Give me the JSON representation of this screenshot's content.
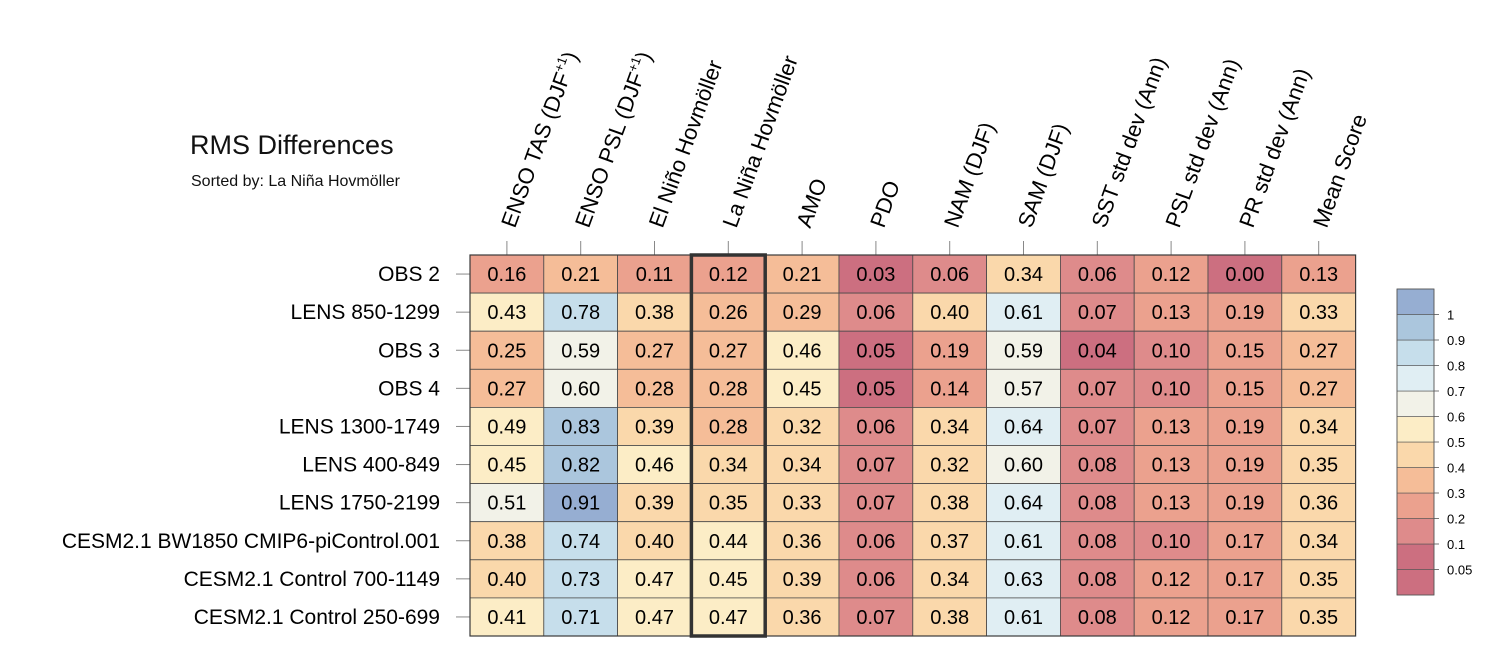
{
  "chart_data": {
    "type": "heatmap",
    "title": "RMS Differences",
    "subtitle": "Sorted by: La Niña Hovmöller",
    "columns": [
      {
        "base": "ENSO TAS (DJF",
        "sup": "+1",
        "tail": ")"
      },
      {
        "base": "ENSO PSL (DJF",
        "sup": "+1",
        "tail": ")"
      },
      {
        "base": "El Niño Hovmöller",
        "sup": "",
        "tail": ""
      },
      {
        "base": "La Niña Hovmöller",
        "sup": "",
        "tail": ""
      },
      {
        "base": "AMO",
        "sup": "",
        "tail": ""
      },
      {
        "base": "PDO",
        "sup": "",
        "tail": ""
      },
      {
        "base": "NAM (DJF)",
        "sup": "",
        "tail": ""
      },
      {
        "base": "SAM (DJF)",
        "sup": "",
        "tail": ""
      },
      {
        "base": "SST std dev (Ann)",
        "sup": "",
        "tail": ""
      },
      {
        "base": "PSL std dev (Ann)",
        "sup": "",
        "tail": ""
      },
      {
        "base": "PR std dev (Ann)",
        "sup": "",
        "tail": ""
      },
      {
        "base": "Mean Score",
        "sup": "",
        "tail": ""
      }
    ],
    "rows": [
      "OBS 2",
      "LENS 850-1299",
      "OBS 3",
      "OBS 4",
      "LENS 1300-1749",
      "LENS 400-849",
      "LENS 1750-2199",
      "CESM2.1 BW1850 CMIP6-piControl.001",
      "CESM2.1 Control 700-1149",
      "CESM2.1 Control 250-699"
    ],
    "values": [
      [
        "0.16",
        "0.21",
        "0.11",
        "0.12",
        "0.21",
        "0.03",
        "0.06",
        "0.34",
        "0.06",
        "0.12",
        "0.00",
        "0.13"
      ],
      [
        "0.43",
        "0.78",
        "0.38",
        "0.26",
        "0.29",
        "0.06",
        "0.40",
        "0.61",
        "0.07",
        "0.13",
        "0.19",
        "0.33"
      ],
      [
        "0.25",
        "0.59",
        "0.27",
        "0.27",
        "0.46",
        "0.05",
        "0.19",
        "0.59",
        "0.04",
        "0.10",
        "0.15",
        "0.27"
      ],
      [
        "0.27",
        "0.60",
        "0.28",
        "0.28",
        "0.45",
        "0.05",
        "0.14",
        "0.57",
        "0.07",
        "0.10",
        "0.15",
        "0.27"
      ],
      [
        "0.49",
        "0.83",
        "0.39",
        "0.28",
        "0.32",
        "0.06",
        "0.34",
        "0.64",
        "0.07",
        "0.13",
        "0.19",
        "0.34"
      ],
      [
        "0.45",
        "0.82",
        "0.46",
        "0.34",
        "0.34",
        "0.07",
        "0.32",
        "0.60",
        "0.08",
        "0.13",
        "0.19",
        "0.35"
      ],
      [
        "0.51",
        "0.91",
        "0.39",
        "0.35",
        "0.33",
        "0.07",
        "0.38",
        "0.64",
        "0.08",
        "0.13",
        "0.19",
        "0.36"
      ],
      [
        "0.38",
        "0.74",
        "0.40",
        "0.44",
        "0.36",
        "0.06",
        "0.37",
        "0.61",
        "0.08",
        "0.10",
        "0.17",
        "0.34"
      ],
      [
        "0.40",
        "0.73",
        "0.47",
        "0.45",
        "0.39",
        "0.06",
        "0.34",
        "0.63",
        "0.08",
        "0.12",
        "0.17",
        "0.35"
      ],
      [
        "0.41",
        "0.71",
        "0.47",
        "0.47",
        "0.36",
        "0.07",
        "0.38",
        "0.61",
        "0.08",
        "0.12",
        "0.17",
        "0.35"
      ]
    ],
    "highlighted_column": 3,
    "colorbar": {
      "levels": [
        "0.05",
        "0.1",
        "0.2",
        "0.3",
        "0.4",
        "0.5",
        "0.6",
        "0.7",
        "0.8",
        "0.9",
        "1"
      ],
      "colors": [
        "#cc6f80",
        "#de8b8b",
        "#eba18e",
        "#f5bd98",
        "#fad8ab",
        "#fcedc6",
        "#f2f2e8",
        "#e0eef3",
        "#c6deeb",
        "#abc6dd",
        "#96aed2"
      ]
    }
  }
}
